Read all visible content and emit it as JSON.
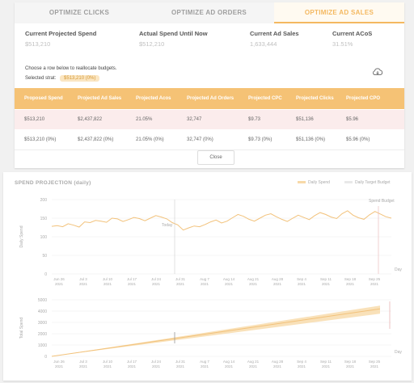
{
  "tabs": [
    "OPTIMIZE CLICKS",
    "OPTIMIZE AD ORDERS",
    "OPTIMIZE AD SALES"
  ],
  "kpis": [
    {
      "label": "Current Projected Spend",
      "value": "$513,210"
    },
    {
      "label": "Actual Spend Until Now",
      "value": "$512,210"
    },
    {
      "label": "Current Ad Sales",
      "value": "1,633,444"
    },
    {
      "label": "Current ACoS",
      "value": "31.51%"
    }
  ],
  "hint_text": "Choose a row below to reallocate budgets.",
  "selected_label": "Selected strat:",
  "selected_value": "$513,210 (0%)",
  "table": {
    "headers": [
      "Proposed Spend",
      "Projected Ad Sales",
      "Projected Acos",
      "Projected Ad Orders",
      "Projected CPC",
      "Projected Clicks",
      "Projected CPO"
    ],
    "rows": [
      [
        "$513,210",
        "$2,437,822",
        "21.05%",
        "32,747",
        "$9.73",
        "$51,136",
        "$5.96"
      ],
      [
        "$513,210 (0%)",
        "$2,437,822 (0%)",
        "21.05% (0%)",
        "32,747 (0%)",
        "$9.73 (0%)",
        "$51,136 (0%)",
        "$5.96 (0%)"
      ]
    ]
  },
  "close_label": "Close",
  "chart": {
    "title": "SPEND PROJECTION (daily)",
    "legend": [
      "Daily Spend",
      "Daily Target Budget"
    ],
    "today_label": "Today",
    "spend_label": "Spend Budget",
    "ylabel_top": "Daily Spend",
    "ylabel_bottom": "Total Spend",
    "x_unit": "Day",
    "colors": {
      "line": "#f2c27b",
      "fill": "#f7d9a8",
      "grid": "#eeeeee",
      "target": "#e9b4b4"
    }
  },
  "chart_data": [
    {
      "type": "line",
      "title": "SPEND PROJECTION (daily)",
      "ylabel": "Daily Spend",
      "ylim": [
        0,
        200
      ],
      "yticks": [
        "0",
        "50",
        "100",
        "150",
        "200"
      ],
      "x_ticks": [
        "Jun 26\n2021",
        "Jul 3\n2021",
        "Jul 10\n2021",
        "Jul 17\n2021",
        "Jul 24\n2021",
        "Jul 31\n2021",
        "Aug 7\n2021",
        "Aug 14\n2021",
        "Aug 21\n2021",
        "Aug 28\n2021",
        "Sep 4\n2021",
        "Sep 11\n2021",
        "Sep 18\n2021",
        "Sep 25\n2021"
      ],
      "series": [
        {
          "name": "Daily Spend",
          "values": [
            128,
            130,
            127,
            135,
            131,
            126,
            140,
            138,
            144,
            142,
            139,
            150,
            148,
            141,
            146,
            152,
            149,
            143,
            150,
            157,
            153,
            148,
            138,
            132,
            118,
            124,
            129,
            127,
            133,
            140,
            145,
            137,
            142,
            151,
            160,
            155,
            147,
            142,
            150,
            158,
            162,
            154,
            147,
            141,
            150,
            158,
            152,
            146,
            157,
            165,
            160,
            153,
            149,
            162,
            170,
            158,
            151,
            147,
            159,
            168,
            161,
            154,
            150
          ]
        }
      ]
    },
    {
      "type": "area",
      "ylabel": "Total Spend",
      "ylim": [
        0,
        5000
      ],
      "yticks": [
        "0",
        "1000",
        "2000",
        "3000",
        "4000",
        "5000"
      ],
      "x_ticks": [
        "Jun 26\n2021",
        "Jul 3\n2021",
        "Jul 10\n2021",
        "Jul 17\n2021",
        "Jul 24\n2021",
        "Jul 31\n2021",
        "Aug 7\n2021",
        "Aug 14\n2021",
        "Aug 21\n2021",
        "Aug 28\n2021",
        "Sep 4\n2021",
        "Sep 11\n2021",
        "Sep 18\n2021",
        "Sep 25\n2021"
      ],
      "series": [
        {
          "name": "Total Spend",
          "start": 0,
          "end": 4200
        }
      ]
    }
  ]
}
